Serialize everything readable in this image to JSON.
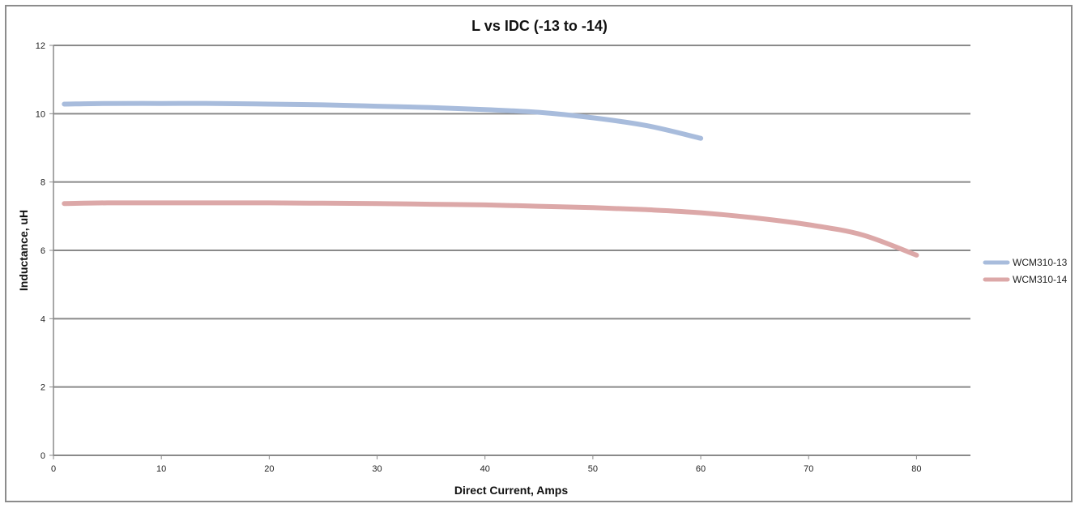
{
  "chart_data": {
    "type": "line",
    "title": "L vs IDC (-13 to -14)",
    "xlabel": "Direct Current,  Amps",
    "ylabel": "Inductance, uH",
    "xlim": [
      0,
      85
    ],
    "ylim": [
      0,
      12
    ],
    "x_ticks": [
      0,
      10,
      20,
      30,
      40,
      50,
      60,
      70,
      80
    ],
    "y_ticks": [
      0,
      2,
      4,
      6,
      8,
      10,
      12
    ],
    "grid": "horizontal",
    "legend_position": "right",
    "series": [
      {
        "name": "WCM310-13",
        "color": "#a8bcdc",
        "points": [
          [
            1,
            10.28
          ],
          [
            5,
            10.3
          ],
          [
            10,
            10.3
          ],
          [
            15,
            10.3
          ],
          [
            20,
            10.28
          ],
          [
            25,
            10.26
          ],
          [
            30,
            10.22
          ],
          [
            35,
            10.18
          ],
          [
            40,
            10.12
          ],
          [
            45,
            10.04
          ],
          [
            50,
            9.88
          ],
          [
            55,
            9.65
          ],
          [
            60,
            9.28
          ]
        ]
      },
      {
        "name": "WCM310-14",
        "color": "#dca8a8",
        "points": [
          [
            1,
            7.37
          ],
          [
            5,
            7.39
          ],
          [
            10,
            7.39
          ],
          [
            15,
            7.39
          ],
          [
            20,
            7.39
          ],
          [
            25,
            7.38
          ],
          [
            30,
            7.37
          ],
          [
            35,
            7.35
          ],
          [
            40,
            7.33
          ],
          [
            45,
            7.29
          ],
          [
            50,
            7.25
          ],
          [
            55,
            7.19
          ],
          [
            60,
            7.1
          ],
          [
            65,
            6.95
          ],
          [
            70,
            6.75
          ],
          [
            75,
            6.45
          ],
          [
            80,
            5.86
          ]
        ]
      }
    ]
  }
}
